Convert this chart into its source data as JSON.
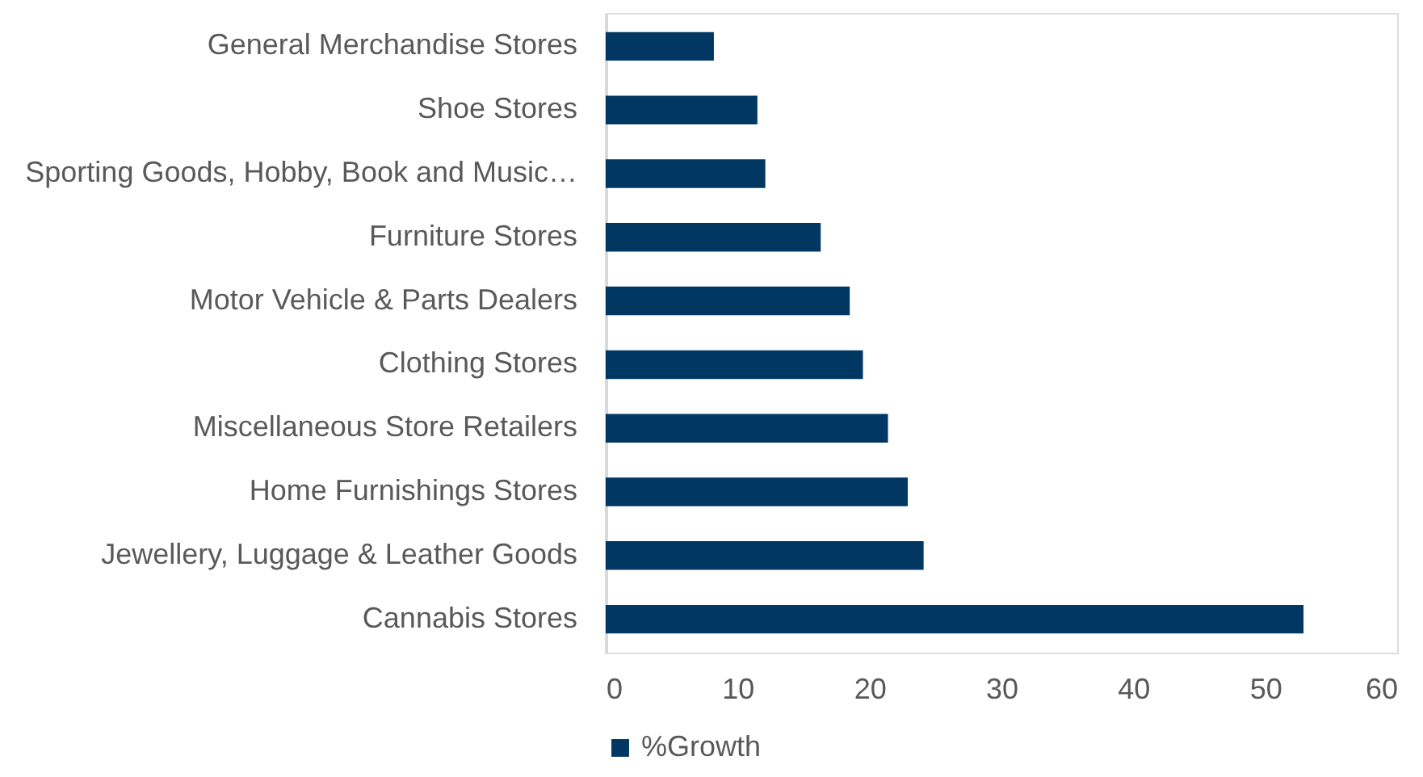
{
  "chart_data": {
    "type": "bar",
    "orientation": "horizontal",
    "categories": [
      "General Merchandise Stores",
      "Shoe Stores",
      "Sporting Goods, Hobby, Book and Music…",
      "Furniture Stores",
      "Motor Vehicle & Parts Dealers",
      "Clothing Stores",
      "Miscellaneous Store Retailers",
      "Home Furnishings Stores",
      "Jewellery, Luggage & Leather Goods",
      "Cannabis Stores"
    ],
    "series": [
      {
        "name": "%Growth",
        "color": "#003763",
        "values": [
          8.2,
          11.5,
          12.1,
          16.3,
          18.5,
          19.5,
          21.4,
          22.9,
          24.1,
          52.9
        ]
      }
    ],
    "xlim": [
      0,
      60
    ],
    "xticks": [
      0,
      10,
      20,
      30,
      40,
      50,
      60
    ],
    "grid": false,
    "legend": "bottom"
  }
}
